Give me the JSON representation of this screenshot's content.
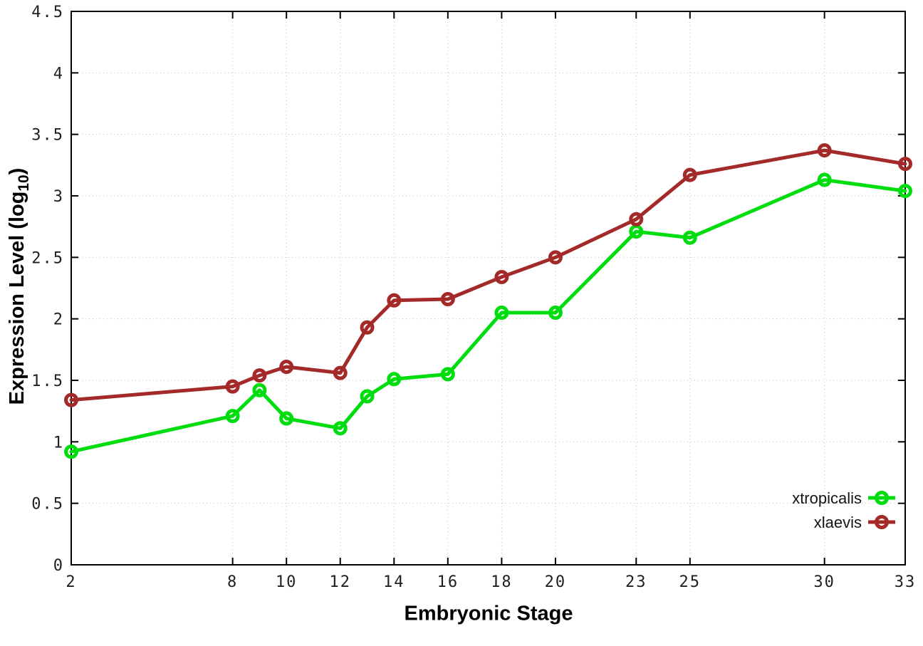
{
  "chart_data": {
    "type": "line",
    "title": "",
    "xlabel": "Embryonic Stage",
    "ylabel": "Expression Level (log10)",
    "ylabel_parts": {
      "prefix": "Expression Level (log",
      "sub": "10",
      "suffix": ")"
    },
    "x": [
      2,
      8,
      9,
      10,
      12,
      13,
      14,
      16,
      18,
      20,
      23,
      25,
      30,
      33
    ],
    "series": [
      {
        "name": "xtropicalis",
        "color": "#00dd0e",
        "values": [
          0.92,
          1.21,
          1.42,
          1.19,
          1.11,
          1.37,
          1.51,
          1.55,
          2.05,
          2.05,
          2.71,
          2.66,
          3.13,
          3.04
        ]
      },
      {
        "name": "xlaevis",
        "color": "#a42a2a",
        "values": [
          1.34,
          1.45,
          1.54,
          1.61,
          1.56,
          1.93,
          2.15,
          2.16,
          2.34,
          2.5,
          2.81,
          3.17,
          3.37,
          3.26
        ]
      }
    ],
    "xlim": [
      2,
      33
    ],
    "ylim": [
      0,
      4.5
    ],
    "x_ticks": [
      2,
      8,
      10,
      12,
      14,
      16,
      18,
      20,
      23,
      25,
      30,
      33
    ],
    "x_tick_labels": [
      "2",
      "8",
      "10",
      "12",
      "14",
      "16",
      "18",
      "20",
      "23",
      "25",
      "30",
      "33"
    ],
    "y_ticks": [
      0,
      0.5,
      1,
      1.5,
      2,
      2.5,
      3,
      3.5,
      4,
      4.5
    ],
    "y_tick_labels": [
      "0",
      "0.5",
      "1",
      "1.5",
      "2",
      "2.5",
      "3",
      "3.5",
      "4",
      "4.5"
    ],
    "grid": true,
    "legend_position": "bottom-right",
    "legend_labels": [
      "xtropicalis",
      "xlaevis"
    ],
    "marker": "open-circle"
  },
  "style": {
    "background": "#ffffff",
    "grid_color": "#bfbfbf",
    "axis_color": "#000000",
    "tick_label_color": "#1f1f1f"
  }
}
